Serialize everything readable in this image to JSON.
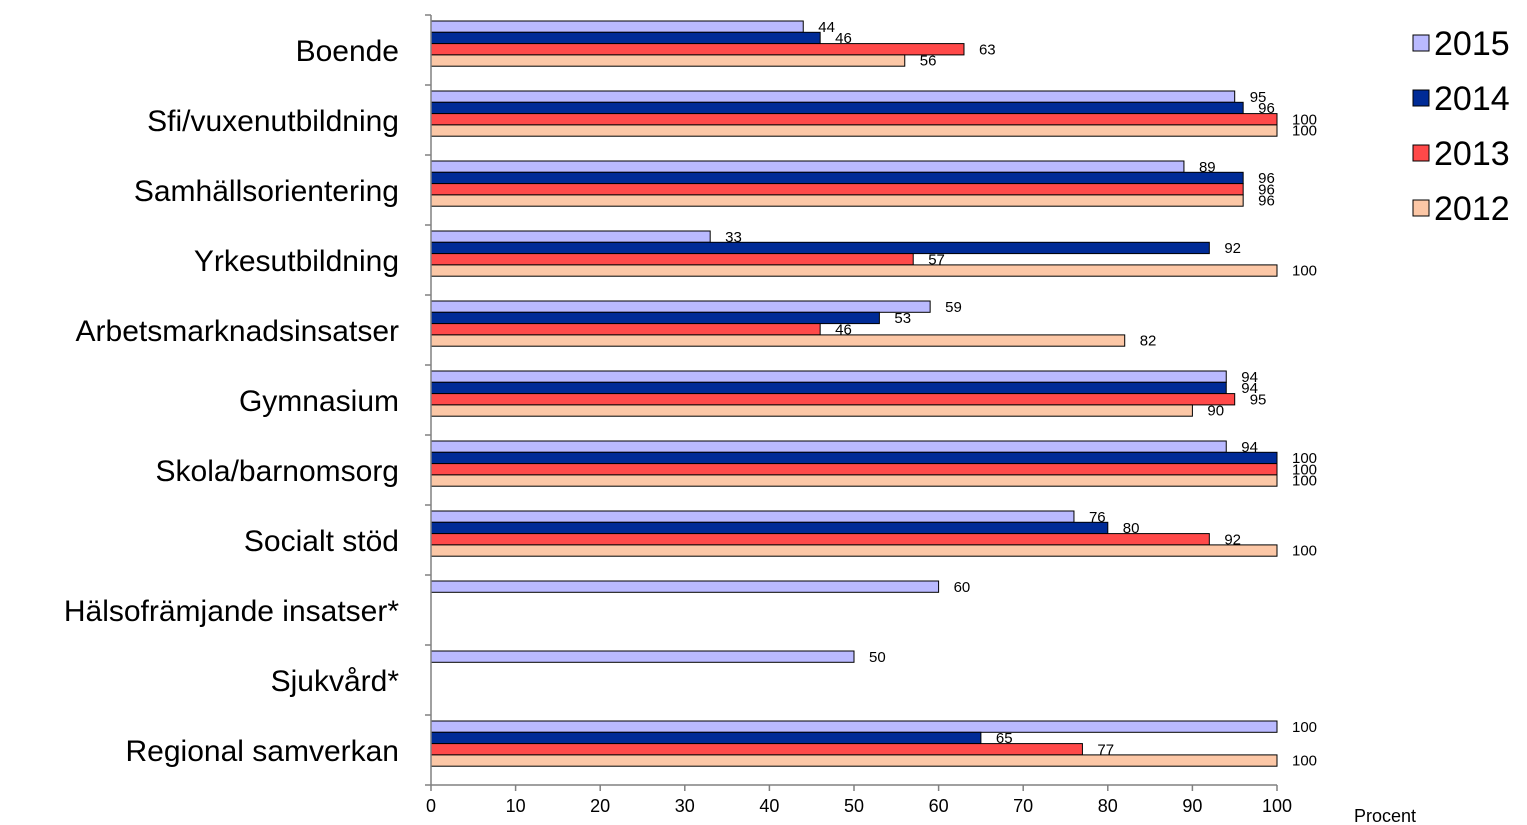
{
  "chart_data": {
    "type": "bar",
    "orientation": "horizontal",
    "categories": [
      "Boende",
      "Sfi/vuxenutbildning",
      "Samhällsorientering",
      "Yrkesutbildning",
      "Arbetsmarknadsinsatser",
      "Gymnasium",
      "Skola/barnomsorg",
      "Socialt stöd",
      "Hälsofrämjande insatser*",
      "Sjukvård*",
      "Regional samverkan"
    ],
    "series": [
      {
        "name": "2015",
        "color": "#babaff",
        "values": [
          44,
          95,
          89,
          33,
          59,
          94,
          94,
          76,
          60,
          50,
          100
        ]
      },
      {
        "name": "2014",
        "color": "#002b96",
        "values": [
          46,
          96,
          96,
          92,
          53,
          94,
          100,
          80,
          null,
          null,
          65
        ]
      },
      {
        "name": "2013",
        "color": "#ff4949",
        "values": [
          63,
          100,
          96,
          57,
          46,
          95,
          100,
          92,
          null,
          null,
          77
        ]
      },
      {
        "name": "2012",
        "color": "#fcc7a6",
        "values": [
          56,
          100,
          96,
          100,
          82,
          90,
          100,
          100,
          null,
          null,
          100
        ]
      }
    ],
    "xlim": [
      0,
      100
    ],
    "xticks": [
      0,
      10,
      20,
      30,
      40,
      50,
      60,
      70,
      80,
      90,
      100
    ],
    "xlabel": "Procent",
    "legend_position": "top-right",
    "legend_order": [
      "2015",
      "2014",
      "2013",
      "2012"
    ],
    "grid": false
  }
}
